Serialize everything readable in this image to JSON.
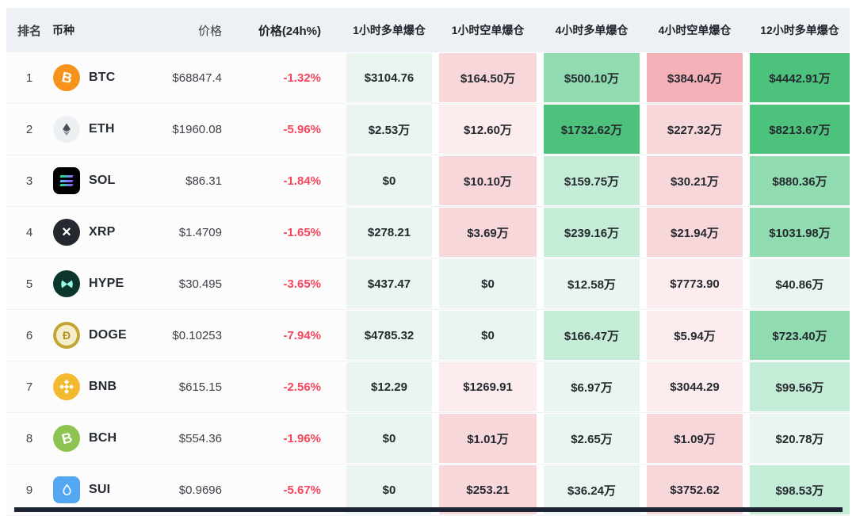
{
  "table": {
    "columns": [
      "排名",
      "币种",
      "价格",
      "价格(24h%)",
      "1小时多单爆仓",
      "1小时空单爆仓",
      "4小时多单爆仓",
      "4小时空单爆仓",
      "12小时多单爆仓"
    ],
    "rows": [
      {
        "rank": "1",
        "coin": "BTC",
        "icon": "btc",
        "price": "$68847.4",
        "change": "-1.32%",
        "cells": [
          {
            "value": "$3104.76",
            "level": "g1"
          },
          {
            "value": "$164.50万",
            "level": "r2"
          },
          {
            "value": "$500.10万",
            "level": "g3"
          },
          {
            "value": "$384.04万",
            "level": "r3"
          },
          {
            "value": "$4442.91万",
            "level": "g4"
          }
        ]
      },
      {
        "rank": "2",
        "coin": "ETH",
        "icon": "eth",
        "price": "$1960.08",
        "change": "-5.96%",
        "cells": [
          {
            "value": "$2.53万",
            "level": "g1"
          },
          {
            "value": "$12.60万",
            "level": "r1"
          },
          {
            "value": "$1732.62万",
            "level": "g4"
          },
          {
            "value": "$227.32万",
            "level": "r2"
          },
          {
            "value": "$8213.67万",
            "level": "g4"
          }
        ]
      },
      {
        "rank": "3",
        "coin": "SOL",
        "icon": "sol",
        "price": "$86.31",
        "change": "-1.84%",
        "cells": [
          {
            "value": "$0",
            "level": "g1"
          },
          {
            "value": "$10.10万",
            "level": "r2"
          },
          {
            "value": "$159.75万",
            "level": "g2"
          },
          {
            "value": "$30.21万",
            "level": "r2"
          },
          {
            "value": "$880.36万",
            "level": "g3"
          }
        ]
      },
      {
        "rank": "4",
        "coin": "XRP",
        "icon": "xrp",
        "price": "$1.4709",
        "change": "-1.65%",
        "cells": [
          {
            "value": "$278.21",
            "level": "g1"
          },
          {
            "value": "$3.69万",
            "level": "r2"
          },
          {
            "value": "$239.16万",
            "level": "g2"
          },
          {
            "value": "$21.94万",
            "level": "r2"
          },
          {
            "value": "$1031.98万",
            "level": "g3"
          }
        ]
      },
      {
        "rank": "5",
        "coin": "HYPE",
        "icon": "hype",
        "price": "$30.495",
        "change": "-3.65%",
        "cells": [
          {
            "value": "$437.47",
            "level": "g1"
          },
          {
            "value": "$0",
            "level": "g1"
          },
          {
            "value": "$12.58万",
            "level": "g1"
          },
          {
            "value": "$7773.90",
            "level": "r1"
          },
          {
            "value": "$40.86万",
            "level": "g1"
          }
        ]
      },
      {
        "rank": "6",
        "coin": "DOGE",
        "icon": "doge",
        "price": "$0.10253",
        "change": "-7.94%",
        "cells": [
          {
            "value": "$4785.32",
            "level": "g1"
          },
          {
            "value": "$0",
            "level": "g1"
          },
          {
            "value": "$166.47万",
            "level": "g2"
          },
          {
            "value": "$5.94万",
            "level": "r1"
          },
          {
            "value": "$723.40万",
            "level": "g3"
          }
        ]
      },
      {
        "rank": "7",
        "coin": "BNB",
        "icon": "bnb",
        "price": "$615.15",
        "change": "-2.56%",
        "cells": [
          {
            "value": "$12.29",
            "level": "g1"
          },
          {
            "value": "$1269.91",
            "level": "r1"
          },
          {
            "value": "$6.97万",
            "level": "g1"
          },
          {
            "value": "$3044.29",
            "level": "r1"
          },
          {
            "value": "$99.56万",
            "level": "g2"
          }
        ]
      },
      {
        "rank": "8",
        "coin": "BCH",
        "icon": "bch",
        "price": "$554.36",
        "change": "-1.96%",
        "cells": [
          {
            "value": "$0",
            "level": "g1"
          },
          {
            "value": "$1.01万",
            "level": "r2"
          },
          {
            "value": "$2.65万",
            "level": "g1"
          },
          {
            "value": "$1.09万",
            "level": "r2"
          },
          {
            "value": "$20.78万",
            "level": "g1"
          }
        ]
      },
      {
        "rank": "9",
        "coin": "SUI",
        "icon": "sui",
        "price": "$0.9696",
        "change": "-5.67%",
        "cells": [
          {
            "value": "$0",
            "level": "g1"
          },
          {
            "value": "$253.21",
            "level": "r2"
          },
          {
            "value": "$36.24万",
            "level": "g1"
          },
          {
            "value": "$3752.62",
            "level": "r2"
          },
          {
            "value": "$98.53万",
            "level": "g2"
          }
        ]
      }
    ]
  },
  "colors": {
    "negative": "#f6465d",
    "header_bg": "#edf1f5",
    "footer_bar": "#1c2434",
    "levels": {
      "g1": "#e9f5ee",
      "g2": "#c5ecd6",
      "g3": "#90dbaf",
      "g4": "#4dc27d",
      "r1": "#fdecee",
      "r2": "#f8d7db",
      "r3": "#f5b1b8"
    }
  },
  "icons": {
    "btc": {
      "bg": "#f7931a",
      "fg": "#ffffff",
      "shape": "circle"
    },
    "eth": {
      "bg": "#edf0f3",
      "fg": "#4a505a",
      "shape": "circle"
    },
    "sol": {
      "bg": "#000000",
      "fg": "#14f195",
      "shape": "square"
    },
    "xrp": {
      "bg": "#23292f",
      "fg": "#ffffff",
      "shape": "circle"
    },
    "hype": {
      "bg": "#0c352e",
      "fg": "#97fce4",
      "shape": "circle"
    },
    "doge": {
      "bg": "#c3a634",
      "fg": "#b08f23",
      "shape": "circle"
    },
    "bnb": {
      "bg": "#f3ba2f",
      "fg": "#ffffff",
      "shape": "circle"
    },
    "bch": {
      "bg": "#8dc351",
      "fg": "#ffffff",
      "shape": "circle"
    },
    "sui": {
      "bg": "#54a8f2",
      "fg": "#ffffff",
      "shape": "square"
    }
  }
}
